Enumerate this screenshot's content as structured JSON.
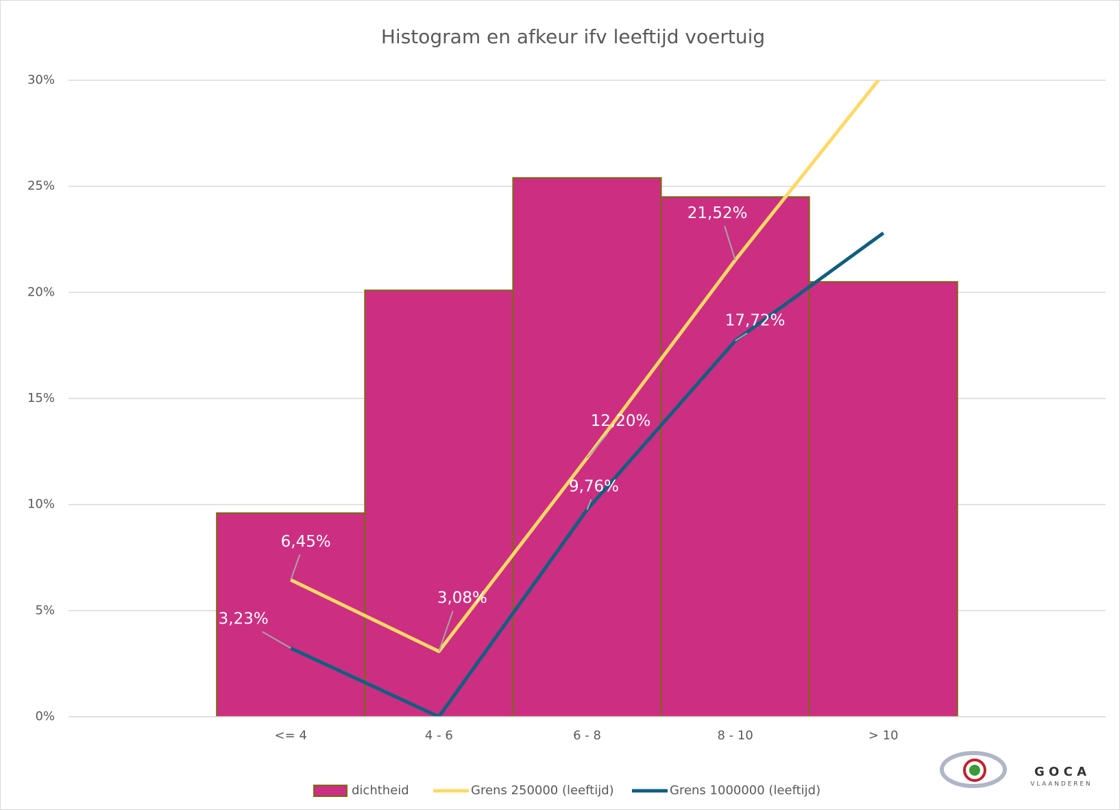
{
  "chart_data": {
    "type": "bar",
    "title": "Histogram en afkeur ifv leeftijd voertuig",
    "categories": [
      null,
      "<= 4",
      "4 - 6",
      "6 - 8",
      "8 - 10",
      "> 10",
      null
    ],
    "series": [
      {
        "name": "dichtheid",
        "type": "bar",
        "color": "#cc2e82",
        "edge": "#7a6a10",
        "values": [
          null,
          9.6,
          20.1,
          25.4,
          24.5,
          20.5,
          null
        ]
      },
      {
        "name": "Grens 250000 (leeftijd)",
        "type": "line",
        "color": "#ffd966",
        "values": [
          null,
          6.45,
          3.08,
          12.2,
          21.52,
          30.3,
          null
        ],
        "value_labels": [
          null,
          "6,45%",
          "3,08%",
          "12,20%",
          "21,52%",
          null,
          null
        ]
      },
      {
        "name": "Grens 1000000 (leeftijd)",
        "type": "line",
        "color": "#0f5f80",
        "values": [
          null,
          3.23,
          0,
          9.76,
          17.72,
          22.8,
          null
        ],
        "value_labels": [
          null,
          "3,23%",
          null,
          "9,76%",
          "17,72%",
          null,
          null
        ]
      }
    ],
    "ylim": [
      0,
      30
    ],
    "yticks": [
      {
        "value": 0,
        "label": "0%"
      },
      {
        "value": 5,
        "label": "5%"
      },
      {
        "value": 10,
        "label": "10%"
      },
      {
        "value": 15,
        "label": "15%"
      },
      {
        "value": 20,
        "label": "20%"
      },
      {
        "value": 25,
        "label": "25%"
      },
      {
        "value": 30,
        "label": "30%"
      }
    ],
    "grid": true,
    "legend": "bottom",
    "logo": {
      "text": "G O C A",
      "sub": "V L A A N D E R E N"
    }
  }
}
